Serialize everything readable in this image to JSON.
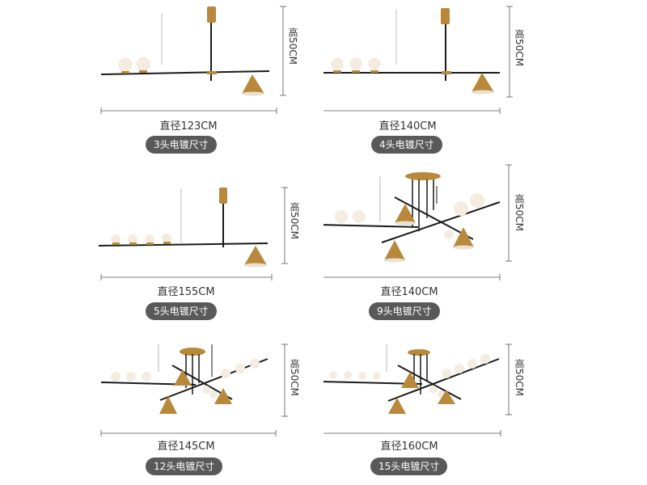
{
  "products": [
    {
      "diameter": "直径123CM",
      "height": "高50CM",
      "label": "3头电镀尺寸"
    },
    {
      "diameter": "直径140CM",
      "height": "高50CM",
      "label": "4头电镀尺寸"
    },
    {
      "diameter": "直径155CM",
      "height": "高50CM",
      "label": "5头电镀尺寸"
    },
    {
      "diameter": "直径140CM",
      "height": "高50CM",
      "label": "9头电镀尺寸"
    },
    {
      "diameter": "直径145CM",
      "height": "高50CM",
      "label": "12头电镀尺寸"
    },
    {
      "diameter": "直径160CM",
      "height": "高50CM",
      "label": "15头电镀尺寸"
    }
  ],
  "colors": {
    "gold": "#b8893a",
    "black": "#1a1a1a",
    "badge": "#595959",
    "glass": "#f4ece0"
  }
}
